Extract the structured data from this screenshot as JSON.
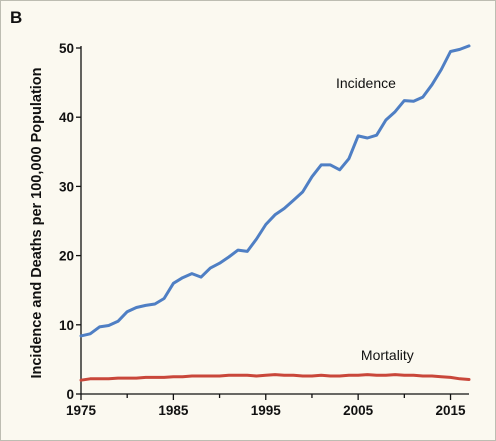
{
  "panel_label": "B",
  "chart_data": {
    "type": "line",
    "title": "",
    "xlabel": "",
    "ylabel": "Incidence and Deaths per 100,000 Population",
    "xlim": [
      1975,
      2017
    ],
    "ylim": [
      0,
      50
    ],
    "xticks": [
      1975,
      1985,
      1995,
      2005,
      2015
    ],
    "yticks": [
      0,
      10,
      20,
      30,
      40,
      50
    ],
    "grid": false,
    "legend": "none",
    "series": [
      {
        "name": "Incidence",
        "color": "#4f7fc4",
        "x": [
          1975,
          1976,
          1977,
          1978,
          1979,
          1980,
          1981,
          1982,
          1983,
          1984,
          1985,
          1986,
          1987,
          1988,
          1989,
          1990,
          1991,
          1992,
          1993,
          1994,
          1995,
          1996,
          1997,
          1998,
          1999,
          2000,
          2001,
          2002,
          2003,
          2004,
          2005,
          2006,
          2007,
          2008,
          2009,
          2010,
          2011,
          2012,
          2013,
          2014,
          2015,
          2016,
          2017
        ],
        "values": [
          8.4,
          8.7,
          9.7,
          9.9,
          10.5,
          11.9,
          12.5,
          12.8,
          13.0,
          13.8,
          16.0,
          16.8,
          17.4,
          16.9,
          18.2,
          18.9,
          19.8,
          20.8,
          20.6,
          22.4,
          24.5,
          25.9,
          26.8,
          28.0,
          29.2,
          31.4,
          33.1,
          33.1,
          32.4,
          34.0,
          37.3,
          37.0,
          37.4,
          39.6,
          40.8,
          42.4,
          42.3,
          42.9,
          44.7,
          46.9,
          49.5,
          49.8,
          50.3
        ]
      },
      {
        "name": "Mortality",
        "color": "#c9473a",
        "x": [
          1975,
          1976,
          1977,
          1978,
          1979,
          1980,
          1981,
          1982,
          1983,
          1984,
          1985,
          1986,
          1987,
          1988,
          1989,
          1990,
          1991,
          1992,
          1993,
          1994,
          1995,
          1996,
          1997,
          1998,
          1999,
          2000,
          2001,
          2002,
          2003,
          2004,
          2005,
          2006,
          2007,
          2008,
          2009,
          2010,
          2011,
          2012,
          2013,
          2014,
          2015,
          2016,
          2017
        ],
        "values": [
          2.0,
          2.2,
          2.2,
          2.2,
          2.3,
          2.3,
          2.3,
          2.4,
          2.4,
          2.4,
          2.5,
          2.5,
          2.6,
          2.6,
          2.6,
          2.6,
          2.7,
          2.7,
          2.7,
          2.6,
          2.7,
          2.8,
          2.7,
          2.7,
          2.6,
          2.6,
          2.7,
          2.6,
          2.6,
          2.7,
          2.7,
          2.8,
          2.7,
          2.7,
          2.8,
          2.7,
          2.7,
          2.6,
          2.6,
          2.5,
          2.4,
          2.2,
          2.1
        ]
      }
    ]
  }
}
